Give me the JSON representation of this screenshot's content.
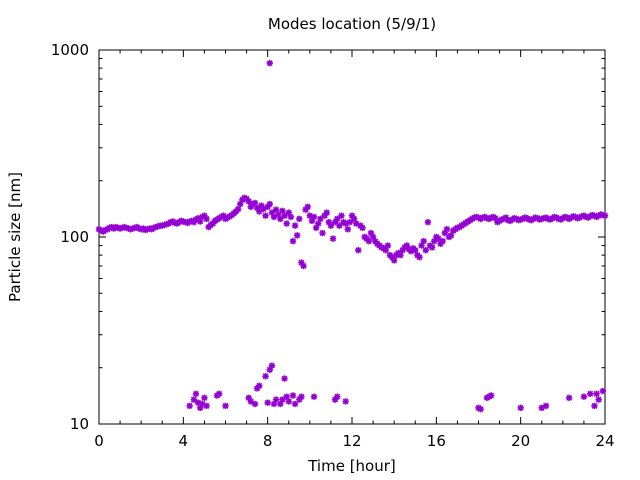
{
  "chart_data": {
    "type": "scatter",
    "title": "Modes location (5/9/1)",
    "xlabel": "Time [hour]",
    "ylabel": "Particle size [nm]",
    "xlim": [
      0,
      24
    ],
    "ylim": [
      10,
      1000
    ],
    "yscale": "log",
    "grid": false,
    "legend": "none",
    "marker_color": "#9400D3",
    "x_ticks": [
      {
        "value": 0,
        "label": "0"
      },
      {
        "value": 4,
        "label": "4"
      },
      {
        "value": 8,
        "label": "8"
      },
      {
        "value": 12,
        "label": "12"
      },
      {
        "value": 16,
        "label": "16"
      },
      {
        "value": 20,
        "label": "20"
      },
      {
        "value": 24,
        "label": "24"
      }
    ],
    "y_ticks": [
      {
        "value": 10,
        "label": "10"
      },
      {
        "value": 100,
        "label": "100"
      },
      {
        "value": 1000,
        "label": "1000"
      }
    ],
    "series": [
      {
        "points": [
          [
            0.0,
            110
          ],
          [
            0.1,
            108
          ],
          [
            0.2,
            107
          ],
          [
            0.3,
            109
          ],
          [
            0.4,
            110
          ],
          [
            0.5,
            112
          ],
          [
            0.6,
            113
          ],
          [
            0.7,
            111
          ],
          [
            0.8,
            113
          ],
          [
            0.9,
            112
          ],
          [
            1.0,
            111
          ],
          [
            1.1,
            112
          ],
          [
            1.2,
            113
          ],
          [
            1.3,
            112
          ],
          [
            1.4,
            111
          ],
          [
            1.5,
            110
          ],
          [
            1.6,
            111
          ],
          [
            1.7,
            112
          ],
          [
            1.8,
            113
          ],
          [
            1.9,
            111
          ],
          [
            2.0,
            110
          ],
          [
            2.1,
            111
          ],
          [
            2.2,
            109
          ],
          [
            2.3,
            110
          ],
          [
            2.4,
            111
          ],
          [
            2.5,
            110
          ],
          [
            2.6,
            112
          ],
          [
            2.7,
            113
          ],
          [
            2.8,
            114
          ],
          [
            2.9,
            115
          ],
          [
            3.0,
            115
          ],
          [
            3.1,
            116
          ],
          [
            3.2,
            117
          ],
          [
            3.3,
            118
          ],
          [
            3.4,
            120
          ],
          [
            3.5,
            121
          ],
          [
            3.6,
            119
          ],
          [
            3.7,
            118
          ],
          [
            3.8,
            120
          ],
          [
            3.9,
            122
          ],
          [
            4.0,
            121
          ],
          [
            4.1,
            120
          ],
          [
            4.2,
            119
          ],
          [
            4.3,
            121
          ],
          [
            4.4,
            122
          ],
          [
            4.5,
            120
          ],
          [
            4.6,
            124
          ],
          [
            4.7,
            126
          ],
          [
            4.8,
            121
          ],
          [
            4.9,
            128
          ],
          [
            5.0,
            130
          ],
          [
            5.1,
            125
          ],
          [
            5.2,
            113
          ],
          [
            5.3,
            116
          ],
          [
            5.4,
            118
          ],
          [
            5.5,
            122
          ],
          [
            5.6,
            124
          ],
          [
            5.7,
            126
          ],
          [
            5.8,
            128
          ],
          [
            5.9,
            130
          ],
          [
            6.0,
            125
          ],
          [
            6.1,
            127
          ],
          [
            6.2,
            129
          ],
          [
            6.3,
            131
          ],
          [
            6.4,
            134
          ],
          [
            6.5,
            137
          ],
          [
            6.6,
            141
          ],
          [
            6.7,
            150
          ],
          [
            6.8,
            158
          ],
          [
            6.9,
            162
          ],
          [
            7.0,
            160
          ],
          [
            7.1,
            155
          ],
          [
            7.2,
            145
          ],
          [
            7.3,
            150
          ],
          [
            7.4,
            152
          ],
          [
            7.5,
            143
          ],
          [
            7.6,
            137
          ],
          [
            7.7,
            147
          ],
          [
            7.8,
            141
          ],
          [
            7.9,
            130
          ],
          [
            8.0,
            145
          ],
          [
            8.1,
            150
          ],
          [
            8.2,
            135
          ],
          [
            8.3,
            128
          ],
          [
            8.4,
            140
          ],
          [
            8.5,
            132
          ],
          [
            8.6,
            125
          ],
          [
            8.7,
            138
          ],
          [
            8.8,
            130
          ],
          [
            8.9,
            118
          ],
          [
            9.0,
            135
          ],
          [
            9.1,
            128
          ],
          [
            9.2,
            95
          ],
          [
            9.3,
            115
          ],
          [
            9.4,
            102
          ],
          [
            9.5,
            125
          ],
          [
            9.6,
            73
          ],
          [
            9.7,
            70
          ],
          [
            9.8,
            140
          ],
          [
            9.9,
            145
          ],
          [
            10.0,
            130
          ],
          [
            10.1,
            122
          ],
          [
            10.2,
            128
          ],
          [
            10.3,
            112
          ],
          [
            10.4,
            118
          ],
          [
            10.5,
            125
          ],
          [
            10.6,
            105
          ],
          [
            10.7,
            130
          ],
          [
            10.8,
            135
          ],
          [
            10.9,
            120
          ],
          [
            11.0,
            115
          ],
          [
            11.1,
            98
          ],
          [
            11.2,
            120
          ],
          [
            11.3,
            125
          ],
          [
            11.4,
            115
          ],
          [
            11.5,
            130
          ],
          [
            11.6,
            120
          ],
          [
            11.7,
            118
          ],
          [
            11.8,
            110
          ],
          [
            11.9,
            120
          ],
          [
            12.0,
            130
          ],
          [
            12.1,
            125
          ],
          [
            12.2,
            118
          ],
          [
            12.3,
            85
          ],
          [
            12.4,
            115
          ],
          [
            12.5,
            112
          ],
          [
            12.6,
            100
          ],
          [
            12.7,
            98
          ],
          [
            12.8,
            95
          ],
          [
            12.9,
            105
          ],
          [
            13.0,
            100
          ],
          [
            13.1,
            95
          ],
          [
            13.2,
            92
          ],
          [
            13.3,
            90
          ],
          [
            13.4,
            88
          ],
          [
            13.5,
            87
          ],
          [
            13.6,
            85
          ],
          [
            13.7,
            90
          ],
          [
            13.8,
            80
          ],
          [
            13.9,
            78
          ],
          [
            14.0,
            75
          ],
          [
            14.1,
            80
          ],
          [
            14.2,
            82
          ],
          [
            14.3,
            80
          ],
          [
            14.4,
            85
          ],
          [
            14.5,
            88
          ],
          [
            14.6,
            90
          ],
          [
            14.7,
            86
          ],
          [
            14.8,
            84
          ],
          [
            14.9,
            87
          ],
          [
            15.0,
            85
          ],
          [
            15.1,
            80
          ],
          [
            15.2,
            78
          ],
          [
            15.3,
            90
          ],
          [
            15.4,
            95
          ],
          [
            15.5,
            85
          ],
          [
            15.6,
            120
          ],
          [
            15.7,
            90
          ],
          [
            15.8,
            88
          ],
          [
            15.9,
            95
          ],
          [
            16.0,
            100
          ],
          [
            16.1,
            98
          ],
          [
            16.2,
            92
          ],
          [
            16.3,
            95
          ],
          [
            16.4,
            105
          ],
          [
            16.5,
            110
          ],
          [
            16.6,
            100
          ],
          [
            16.7,
            102
          ],
          [
            16.8,
            108
          ],
          [
            16.9,
            110
          ],
          [
            17.0,
            112
          ],
          [
            17.1,
            113
          ],
          [
            17.2,
            115
          ],
          [
            17.3,
            117
          ],
          [
            17.4,
            119
          ],
          [
            17.5,
            121
          ],
          [
            17.6,
            123
          ],
          [
            17.7,
            125
          ],
          [
            17.8,
            127
          ],
          [
            17.9,
            128
          ],
          [
            18.0,
            127
          ],
          [
            18.1,
            125
          ],
          [
            18.2,
            127
          ],
          [
            18.3,
            128
          ],
          [
            18.4,
            126
          ],
          [
            18.5,
            125
          ],
          [
            18.6,
            127
          ],
          [
            18.7,
            128
          ],
          [
            18.8,
            126
          ],
          [
            18.9,
            120
          ],
          [
            19.0,
            122
          ],
          [
            19.1,
            124
          ],
          [
            19.2,
            125
          ],
          [
            19.3,
            127
          ],
          [
            19.4,
            123
          ],
          [
            19.5,
            122
          ],
          [
            19.6,
            124
          ],
          [
            19.7,
            126
          ],
          [
            19.8,
            125
          ],
          [
            19.9,
            123
          ],
          [
            20.0,
            124
          ],
          [
            20.1,
            125
          ],
          [
            20.2,
            127
          ],
          [
            20.3,
            126
          ],
          [
            20.4,
            124
          ],
          [
            20.5,
            123
          ],
          [
            20.6,
            125
          ],
          [
            20.7,
            127
          ],
          [
            20.8,
            126
          ],
          [
            20.9,
            124
          ],
          [
            21.0,
            125
          ],
          [
            21.1,
            126
          ],
          [
            21.2,
            127
          ],
          [
            21.3,
            125
          ],
          [
            21.4,
            124
          ],
          [
            21.5,
            126
          ],
          [
            21.6,
            128
          ],
          [
            21.7,
            127
          ],
          [
            21.8,
            125
          ],
          [
            21.9,
            124
          ],
          [
            22.0,
            126
          ],
          [
            22.1,
            128
          ],
          [
            22.2,
            127
          ],
          [
            22.3,
            125
          ],
          [
            22.4,
            127
          ],
          [
            22.5,
            129
          ],
          [
            22.6,
            128
          ],
          [
            22.7,
            126
          ],
          [
            22.8,
            127
          ],
          [
            22.9,
            129
          ],
          [
            23.0,
            130
          ],
          [
            23.1,
            128
          ],
          [
            23.2,
            127
          ],
          [
            23.3,
            129
          ],
          [
            23.4,
            131
          ],
          [
            23.5,
            130
          ],
          [
            23.6,
            128
          ],
          [
            23.7,
            130
          ],
          [
            23.8,
            132
          ],
          [
            23.9,
            131
          ],
          [
            24.0,
            130
          ],
          [
            8.1,
            850
          ],
          [
            4.3,
            12.5
          ],
          [
            4.5,
            13.5
          ],
          [
            4.6,
            14.5
          ],
          [
            4.7,
            13
          ],
          [
            4.8,
            12.2
          ],
          [
            4.9,
            12.8
          ],
          [
            5.0,
            13.8
          ],
          [
            5.1,
            12.5
          ],
          [
            5.6,
            14.2
          ],
          [
            5.7,
            14.5
          ],
          [
            6.0,
            12.5
          ],
          [
            7.1,
            13.8
          ],
          [
            7.2,
            13.2
          ],
          [
            7.4,
            12.8
          ],
          [
            7.5,
            15.5
          ],
          [
            7.6,
            16
          ],
          [
            7.9,
            18
          ],
          [
            8.0,
            13
          ],
          [
            8.1,
            19.5
          ],
          [
            8.2,
            20.5
          ],
          [
            8.3,
            12.8
          ],
          [
            8.4,
            13.5
          ],
          [
            8.6,
            12.8
          ],
          [
            8.7,
            13.5
          ],
          [
            8.8,
            17.5
          ],
          [
            8.9,
            14
          ],
          [
            9.0,
            13.2
          ],
          [
            9.2,
            14.2
          ],
          [
            9.3,
            12.8
          ],
          [
            9.5,
            13.5
          ],
          [
            9.6,
            14
          ],
          [
            10.2,
            14
          ],
          [
            11.2,
            13.5
          ],
          [
            11.3,
            14
          ],
          [
            11.7,
            13.2
          ],
          [
            18.0,
            12.2
          ],
          [
            18.1,
            12
          ],
          [
            18.4,
            13.8
          ],
          [
            18.5,
            14
          ],
          [
            18.6,
            14.2
          ],
          [
            20.0,
            12.2
          ],
          [
            21.0,
            12.2
          ],
          [
            21.2,
            12.5
          ],
          [
            22.3,
            13.8
          ],
          [
            23.0,
            14
          ],
          [
            23.3,
            14.5
          ],
          [
            23.5,
            12.5
          ],
          [
            23.6,
            14.5
          ],
          [
            23.7,
            13.5
          ],
          [
            23.9,
            15
          ]
        ]
      }
    ]
  }
}
